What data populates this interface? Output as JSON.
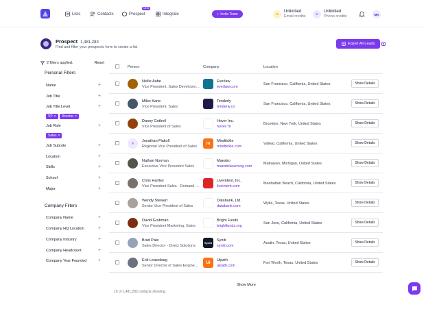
{
  "nav": {
    "items": [
      {
        "label": "Lists",
        "icon": "list-icon"
      },
      {
        "label": "Contacts",
        "icon": "contacts-icon"
      },
      {
        "label": "Prospect",
        "icon": "prospect-icon"
      },
      {
        "label": "Integrate",
        "icon": "grid-icon"
      }
    ],
    "new_badge": "NEW",
    "invite_label": "Invite Team",
    "email_credits": {
      "value": "Unlimited",
      "label": "Email credits"
    },
    "phone_credits": {
      "value": "Unlimited",
      "label": "Phone credits"
    },
    "avatar_initials": "MK"
  },
  "header": {
    "title": "Prospect",
    "count": "1,481,283",
    "subtitle": "Find and filter your prospects here to create a list",
    "export_label": "Export All Leads"
  },
  "filters": {
    "applied_label": "2 filters applied.",
    "reset_label": "Reset",
    "personal_heading": "Personal Filters",
    "company_heading": "Company Filters",
    "personal": [
      "Name",
      "Job Title",
      "Job Title Level",
      "Job Role",
      "Job Subrole",
      "Location",
      "Skills",
      "School",
      "Major"
    ],
    "chips_level": [
      "VP",
      "Director"
    ],
    "chips_role": [
      "Sales"
    ],
    "company": [
      "Company Name",
      "Company HQ Location",
      "Company Industry",
      "Company Headcount",
      "Company Year Founded"
    ]
  },
  "table": {
    "headers": {
      "person": "Person",
      "company": "Company",
      "location": "Location"
    },
    "button_label": "Show Details",
    "rows": [
      {
        "name": "Nellie Aube",
        "title": "Vice President, Sales Development",
        "company": "Everlaw",
        "url": "everlaw.com",
        "location": "San Francisco, California, United States",
        "logo_color": "#0e7490",
        "logo_text": "",
        "avatar_color": "#a16207"
      },
      {
        "name": "Miles Kane",
        "title": "Vice President, Sales",
        "company": "Tenderly",
        "url": "tenderly.co",
        "location": "San Francisco, California, United States",
        "logo_color": "#1e1b4b",
        "logo_text": "",
        "avatar_color": "#475569"
      },
      {
        "name": "Danny Gotheil",
        "title": "Vice President of Sales",
        "company": "Hover Inc.",
        "url": "hover.To",
        "location": "Brooklyn, New York, United States",
        "logo_color": "#ffffff",
        "logo_text": "",
        "avatar_color": "#92400e"
      },
      {
        "name": "Jonathan Flakoll",
        "title": "Regional Vice President of Sales",
        "company": "Mindtickle",
        "url": "mindtickle.com",
        "location": "Vallejo, California, United States",
        "logo_color": "#f97316",
        "logo_text": "m",
        "avatar_color": "#ede9fe"
      },
      {
        "name": "Nathan Norman",
        "title": "Executive Vice President Sales",
        "company": "Maestro",
        "url": "maestrolearning.com",
        "location": "Mattawan, Michigan, United States",
        "logo_color": "#ffffff",
        "logo_text": "",
        "avatar_color": "#57534e"
      },
      {
        "name": "Chris Hartley",
        "title": "Vice President Sales - Demand Side",
        "company": "LiveIntent, Inc.",
        "url": "liveintent.com",
        "location": "Manhattan Beach, California, United States",
        "logo_color": "#dc2626",
        "logo_text": "",
        "avatar_color": "#78716c"
      },
      {
        "name": "Wendy Stewart",
        "title": "Senior Vice President of Sales",
        "company": "Databank, Ltd.",
        "url": "databank.com",
        "location": "Wylie, Texas, United States",
        "logo_color": "#ffffff",
        "logo_text": "",
        "avatar_color": "#a8a29e"
      },
      {
        "name": "David Grubman",
        "title": "Vice President Marketing, Sales",
        "company": "Bright Funds",
        "url": "brightfunds.org",
        "location": "San Jose, California, United States",
        "logo_color": "#ffffff",
        "logo_text": "",
        "avatar_color": "#7c2d12"
      },
      {
        "name": "Brad Pate",
        "title": "Sales Director - Direct Solutions",
        "company": "Syniti",
        "url": "syniti.com",
        "location": "Austin, Texas, United States",
        "logo_color": "#111827",
        "logo_text": "Syniti",
        "avatar_color": "#94a3b8"
      },
      {
        "name": "Erik Leaseburg",
        "title": "Senior Director of Sales Engineering",
        "company": "Uipath",
        "url": "uipath.com",
        "location": "Fort Worth, Texas, United States",
        "logo_color": "#f97316",
        "logo_text": "Ui",
        "avatar_color": "#6b7280"
      }
    ]
  },
  "footer": {
    "show_more": "Show More",
    "showing": "10 of 1,481,283 contacts showing."
  },
  "colors": {
    "accent": "#7c3aed",
    "link": "#6d28d9"
  }
}
